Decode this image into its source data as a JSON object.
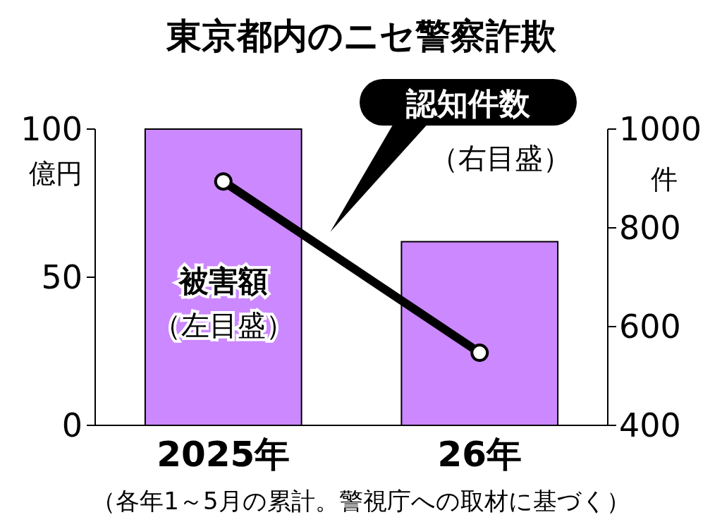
{
  "chart_data": {
    "type": "bar",
    "title": "東京都内のニセ警察詐欺",
    "ylabel": "億円",
    "y2label": "件",
    "categories": [
      "2025年",
      "26年"
    ],
    "series": [
      {
        "name": "被害額",
        "color": "#cc88ff",
        "values": [
          100,
          62
        ]
      },
      {
        "name": "認知件数",
        "type": "line",
        "axis": "y2",
        "color": "#000000",
        "values": [
          894,
          547
        ]
      }
    ],
    "ylim": [
      0,
      100
    ],
    "yticks": [
      0,
      50,
      100
    ],
    "y2lim": [
      400,
      1000
    ],
    "y2ticks": [
      400,
      600,
      800,
      1000
    ],
    "marker": "circle",
    "grid": false,
    "annotations": [
      "（左目盛）",
      "（右目盛）",
      "（各年1～5月の累計。警視庁への取材に基づく）"
    ]
  }
}
